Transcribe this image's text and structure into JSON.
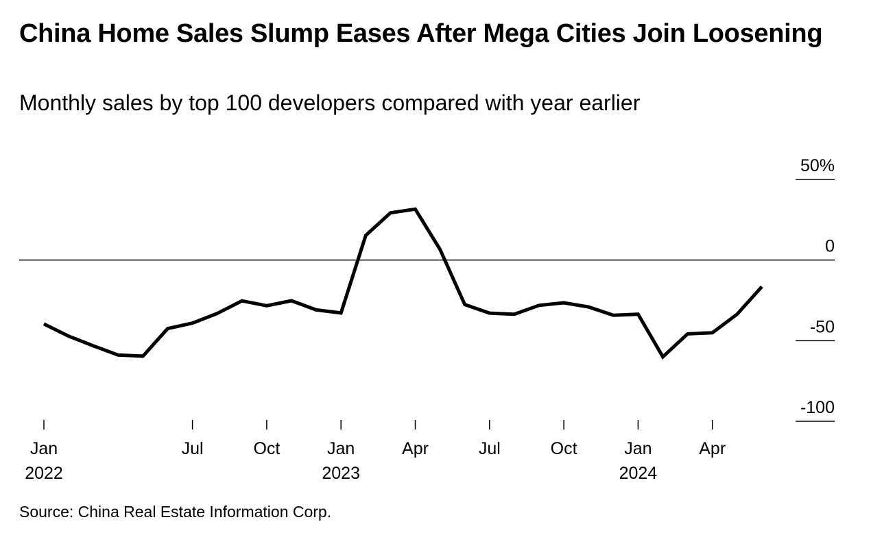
{
  "chart_data": {
    "type": "line",
    "title": "China Home Sales Slump Eases After Mega Cities Join Loosening",
    "subtitle": "Monthly sales by top 100 developers compared with year earlier",
    "source": "Source: China Real Estate Information Corp.",
    "xlabel": "",
    "ylabel": "",
    "ylim": [
      -100,
      50
    ],
    "y_ticks": [
      {
        "value": 50,
        "label": "50%"
      },
      {
        "value": 0,
        "label": "0"
      },
      {
        "value": -50,
        "label": "-50"
      },
      {
        "value": -100,
        "label": "-100"
      }
    ],
    "x_ticks": [
      {
        "date": "2022-01",
        "label": "Jan",
        "year": "2022"
      },
      {
        "date": "2022-07",
        "label": "Jul",
        "year": ""
      },
      {
        "date": "2022-10",
        "label": "Oct",
        "year": ""
      },
      {
        "date": "2023-01",
        "label": "Jan",
        "year": "2023"
      },
      {
        "date": "2023-04",
        "label": "Apr",
        "year": ""
      },
      {
        "date": "2023-07",
        "label": "Jul",
        "year": ""
      },
      {
        "date": "2023-10",
        "label": "Oct",
        "year": ""
      },
      {
        "date": "2024-01",
        "label": "Jan",
        "year": "2024"
      },
      {
        "date": "2024-04",
        "label": "Apr",
        "year": ""
      }
    ],
    "grid": false,
    "line_color": "#000000",
    "series": [
      {
        "name": "",
        "x": [
          "2022-01",
          "2022-02",
          "2022-03",
          "2022-04",
          "2022-05",
          "2022-06",
          "2022-07",
          "2022-08",
          "2022-09",
          "2022-10",
          "2022-11",
          "2022-12",
          "2023-01",
          "2023-02",
          "2023-03",
          "2023-04",
          "2023-05",
          "2023-06",
          "2023-07",
          "2023-08",
          "2023-09",
          "2023-10",
          "2023-11",
          "2023-12",
          "2024-01",
          "2024-02",
          "2024-03",
          "2024-04",
          "2024-05",
          "2024-06",
          "2024-07"
        ],
        "values": [
          -39.6,
          -47.2,
          -53.2,
          -58.9,
          -59.6,
          -42.5,
          -39.1,
          -33.1,
          -25.3,
          -28.3,
          -25.2,
          -30.9,
          -32.8,
          15.3,
          29.3,
          31.6,
          6.6,
          -27.6,
          -32.9,
          -33.6,
          -28.1,
          -26.5,
          -29.1,
          -34.2,
          -33.6,
          -60.0,
          -45.8,
          -45.1,
          -33.6,
          -16.5,
          null
        ]
      }
    ]
  }
}
